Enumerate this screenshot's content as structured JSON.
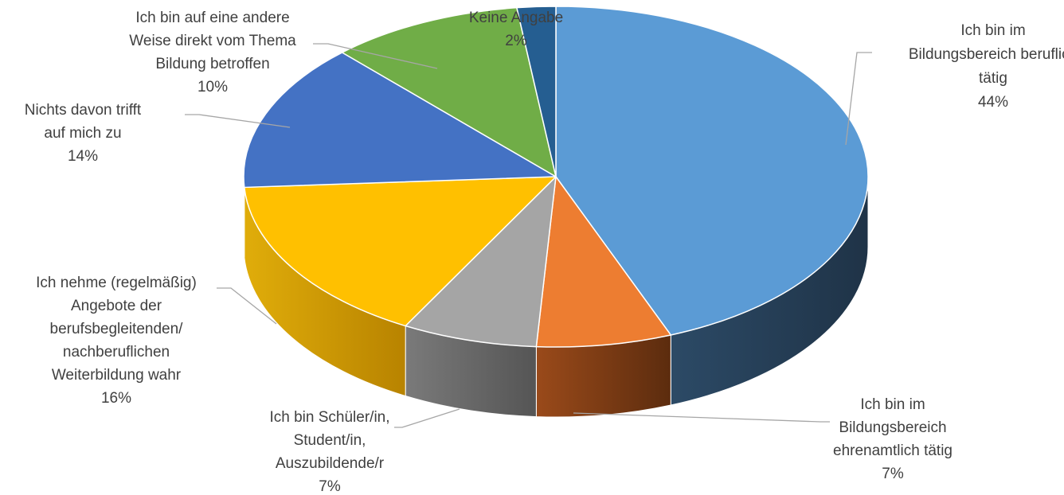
{
  "chart_data": {
    "type": "pie",
    "style": "3d",
    "title": "",
    "unit": "%",
    "slices": [
      {
        "label": "Ich bin im Bildungsbereich beruflich tätig",
        "label_lines": [
          "Ich bin im",
          "Bildungsbereich beruflich",
          "tätig"
        ],
        "value": 44,
        "value_label": "44%",
        "color": "#5b9bd5"
      },
      {
        "label": "Ich bin im Bildungsbereich ehrenamtlich tätig",
        "label_lines": [
          "Ich bin im",
          "Bildungsbereich",
          "ehrenamtlich tätig"
        ],
        "value": 7,
        "value_label": "7%",
        "color": "#ed7d31"
      },
      {
        "label": "Ich bin Schüler/in, Student/in, Auszubildende/r",
        "label_lines": [
          "Ich bin Schüler/in,",
          "Student/in,",
          "Auszubildende/r"
        ],
        "value": 7,
        "value_label": "7%",
        "color": "#a5a5a5"
      },
      {
        "label": "Ich nehme (regelmäßig) Angebote der berufsbegleitenden/ nachberuflichen Weiterbildung wahr",
        "label_lines": [
          "Ich nehme (regelmäßig)",
          "Angebote der",
          "berufsbegleitenden/",
          "nachberuflichen",
          "Weiterbildung wahr"
        ],
        "value": 16,
        "value_label": "16%",
        "color": "#ffc000"
      },
      {
        "label": "Nichts davon trifft auf mich zu",
        "label_lines": [
          "Nichts davon trifft",
          "auf mich zu"
        ],
        "value": 14,
        "value_label": "14%",
        "color": "#4472c4"
      },
      {
        "label": "Ich bin auf eine andere Weise direkt vom Thema Bildung betroffen",
        "label_lines": [
          "Ich bin auf eine andere",
          "Weise direkt vom Thema",
          "Bildung betroffen"
        ],
        "value": 10,
        "value_label": "10%",
        "color": "#70ad47"
      },
      {
        "label": "Keine Angabe",
        "label_lines": [
          "Keine Angabe"
        ],
        "value": 2,
        "value_label": "2%",
        "color": "#255e91"
      }
    ]
  }
}
